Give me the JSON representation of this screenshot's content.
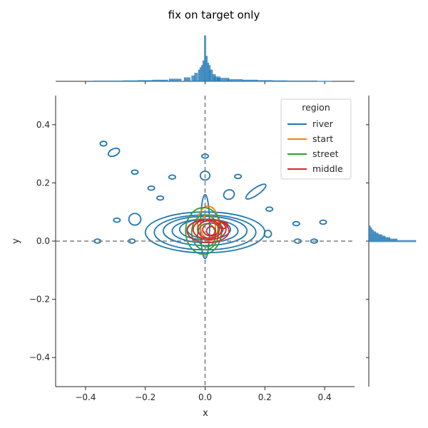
{
  "chart_data": {
    "type": "joint-kde",
    "title": "fix on target only",
    "xlabel": "x",
    "ylabel": "y",
    "xlim": [
      -0.5,
      0.5
    ],
    "ylim": [
      -0.5,
      0.5
    ],
    "xticks": [
      -0.4,
      -0.2,
      0.0,
      0.2,
      0.4
    ],
    "yticks": [
      -0.4,
      -0.2,
      0.0,
      0.2,
      0.4
    ],
    "xtick_labels": [
      "−0.4",
      "−0.2",
      "0.0",
      "0.2",
      "0.4"
    ],
    "ytick_labels": [
      "−0.4",
      "−0.2",
      "0.0",
      "0.2",
      "0.4"
    ],
    "reference_lines": {
      "x": 0,
      "y": 0,
      "style": "dashed",
      "color": "#808080"
    },
    "legend": {
      "title": "region",
      "placement": "upper-right"
    },
    "series": [
      {
        "name": "river",
        "color": "#1f77b4",
        "contours": [
          {
            "cx": 0.0,
            "cy": 0.03,
            "rx": 0.2,
            "ry": 0.07,
            "rot": 0
          },
          {
            "cx": 0.0,
            "cy": 0.03,
            "rx": 0.17,
            "ry": 0.06,
            "rot": 0
          },
          {
            "cx": 0.0,
            "cy": 0.035,
            "rx": 0.14,
            "ry": 0.05,
            "rot": 0
          },
          {
            "cx": 0.0,
            "cy": 0.035,
            "rx": 0.11,
            "ry": 0.04,
            "rot": 0
          },
          {
            "cx": 0.0,
            "cy": 0.04,
            "rx": 0.085,
            "ry": 0.035,
            "rot": 0
          },
          {
            "cx": 0.0,
            "cy": 0.04,
            "rx": 0.06,
            "ry": 0.03,
            "rot": 0
          },
          {
            "cx": 0.0,
            "cy": 0.05,
            "rx": 0.015,
            "ry": 0.11,
            "rot": 0
          },
          {
            "cx": -0.34,
            "cy": 0.335,
            "rx": 0.011,
            "ry": 0.008,
            "rot": 0
          },
          {
            "cx": -0.305,
            "cy": 0.305,
            "rx": 0.02,
            "ry": 0.012,
            "rot": -25
          },
          {
            "cx": -0.235,
            "cy": 0.237,
            "rx": 0.011,
            "ry": 0.007,
            "rot": 0
          },
          {
            "cx": -0.18,
            "cy": 0.182,
            "rx": 0.011,
            "ry": 0.007,
            "rot": 0
          },
          {
            "cx": -0.15,
            "cy": 0.148,
            "rx": 0.011,
            "ry": 0.007,
            "rot": 0
          },
          {
            "cx": -0.11,
            "cy": 0.22,
            "rx": 0.011,
            "ry": 0.007,
            "rot": 0
          },
          {
            "cx": 0.0,
            "cy": 0.292,
            "rx": 0.011,
            "ry": 0.007,
            "rot": 0
          },
          {
            "cx": 0.0,
            "cy": 0.225,
            "rx": 0.016,
            "ry": 0.015,
            "rot": 0
          },
          {
            "cx": 0.11,
            "cy": 0.222,
            "rx": 0.011,
            "ry": 0.007,
            "rot": 0
          },
          {
            "cx": 0.08,
            "cy": 0.16,
            "rx": 0.018,
            "ry": 0.016,
            "rot": -20
          },
          {
            "cx": 0.17,
            "cy": 0.17,
            "rx": 0.04,
            "ry": 0.012,
            "rot": -35
          },
          {
            "cx": 0.215,
            "cy": 0.11,
            "rx": 0.011,
            "ry": 0.007,
            "rot": 0
          },
          {
            "cx": -0.295,
            "cy": 0.072,
            "rx": 0.011,
            "ry": 0.007,
            "rot": 0
          },
          {
            "cx": -0.235,
            "cy": 0.075,
            "rx": 0.02,
            "ry": 0.02,
            "rot": 0
          },
          {
            "cx": -0.36,
            "cy": 0.0,
            "rx": 0.011,
            "ry": 0.007,
            "rot": 0
          },
          {
            "cx": -0.245,
            "cy": 0.0,
            "rx": 0.011,
            "ry": 0.007,
            "rot": 0
          },
          {
            "cx": 0.21,
            "cy": 0.025,
            "rx": 0.012,
            "ry": 0.012,
            "rot": 0
          },
          {
            "cx": 0.305,
            "cy": 0.06,
            "rx": 0.011,
            "ry": 0.007,
            "rot": 0
          },
          {
            "cx": 0.395,
            "cy": 0.065,
            "rx": 0.011,
            "ry": 0.007,
            "rot": 0
          },
          {
            "cx": 0.31,
            "cy": 0.0,
            "rx": 0.011,
            "ry": 0.007,
            "rot": 0
          },
          {
            "cx": 0.365,
            "cy": 0.0,
            "rx": 0.011,
            "ry": 0.007,
            "rot": 0
          }
        ]
      },
      {
        "name": "start",
        "color": "#ff7f0e",
        "contours": [
          {
            "cx": 0.01,
            "cy": 0.06,
            "rx": 0.035,
            "ry": 0.06,
            "rot": 0
          },
          {
            "cx": 0.01,
            "cy": 0.05,
            "rx": 0.025,
            "ry": 0.04,
            "rot": 0
          }
        ]
      },
      {
        "name": "street",
        "color": "#2ca02c",
        "contours": [
          {
            "cx": -0.005,
            "cy": 0.035,
            "rx": 0.06,
            "ry": 0.08,
            "rot": 0
          },
          {
            "cx": 0.0,
            "cy": 0.03,
            "rx": 0.045,
            "ry": 0.06,
            "rot": 0
          },
          {
            "cx": 0.005,
            "cy": 0.02,
            "rx": 0.03,
            "ry": 0.04,
            "rot": 0
          }
        ]
      },
      {
        "name": "middle",
        "color": "#d62728",
        "contours": [
          {
            "cx": 0.01,
            "cy": 0.035,
            "rx": 0.07,
            "ry": 0.04,
            "rot": 0
          },
          {
            "cx": 0.015,
            "cy": 0.04,
            "rx": 0.055,
            "ry": 0.035,
            "rot": 0
          },
          {
            "cx": 0.015,
            "cy": 0.04,
            "rx": 0.04,
            "ry": 0.03,
            "rot": 0
          },
          {
            "cx": 0.02,
            "cy": 0.04,
            "rx": 0.028,
            "ry": 0.022,
            "rot": 0
          },
          {
            "cx": 0.02,
            "cy": 0.035,
            "rx": 0.015,
            "ry": 0.015,
            "rot": 0
          },
          {
            "cx": 0.06,
            "cy": 0.055,
            "rx": 0.015,
            "ry": 0.012,
            "rot": 0
          }
        ]
      }
    ],
    "marginal_x": {
      "color": "#1f77b4",
      "bins_center": [
        -0.35,
        -0.3,
        -0.25,
        -0.2,
        -0.15,
        -0.1,
        -0.06,
        -0.04,
        -0.03,
        -0.02,
        -0.015,
        -0.01,
        -0.005,
        0.0,
        0.005,
        0.01,
        0.015,
        0.02,
        0.03,
        0.04,
        0.06,
        0.1,
        0.15,
        0.2,
        0.25,
        0.3,
        0.35,
        0.4
      ],
      "relative_heights": [
        0.01,
        0.01,
        0.015,
        0.02,
        0.03,
        0.05,
        0.08,
        0.12,
        0.18,
        0.25,
        0.3,
        0.35,
        0.45,
        1.0,
        0.55,
        0.4,
        0.35,
        0.25,
        0.15,
        0.1,
        0.07,
        0.04,
        0.03,
        0.02,
        0.015,
        0.01,
        0.01,
        0.005
      ]
    },
    "marginal_y": {
      "color": "#1f77b4",
      "bins_center": [
        0.0,
        0.005,
        0.01,
        0.015,
        0.02,
        0.025,
        0.03,
        0.035,
        0.04,
        0.045,
        0.05
      ],
      "relative_heights": [
        1.0,
        0.6,
        0.45,
        0.35,
        0.28,
        0.2,
        0.15,
        0.1,
        0.07,
        0.05,
        0.03
      ]
    }
  }
}
